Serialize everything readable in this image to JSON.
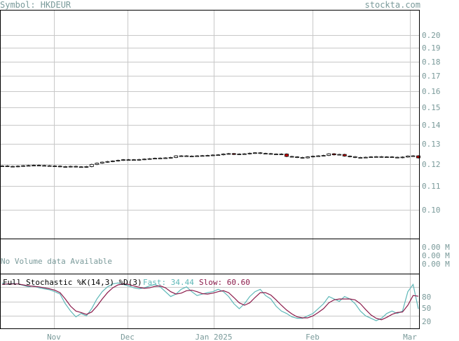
{
  "header": {
    "symbol_text": "Symbol: HKDEUR",
    "site": "stockta.com"
  },
  "volume": {
    "message": "No Volume data Available",
    "tick_labels": [
      "0.00 M",
      "0.00 M",
      "0.00 M"
    ]
  },
  "stochastic": {
    "title": "Full Stochastic %K(14,3) %D(3)",
    "fast_label": "Fast: 34.44",
    "slow_label": "Slow: 60.60",
    "fast_color": "#5fb8b8",
    "slow_color": "#8b1a4a",
    "ticks": [
      "80",
      "50",
      "20"
    ]
  },
  "chart_data": {
    "type": "candlestick",
    "y_ticks": [
      "0.20",
      "0.19",
      "0.18",
      "0.17",
      "0.16",
      "0.15",
      "0.14",
      "0.13",
      "0.12",
      "0.11",
      "0.10"
    ],
    "x_labels": [
      "Nov",
      "Dec",
      "Jan 2025",
      "Feb",
      "Mar"
    ],
    "ylim": [
      0.095,
      0.21
    ],
    "close": [
      0.1192,
      0.119,
      0.1189,
      0.1191,
      0.1193,
      0.1194,
      0.1195,
      0.1194,
      0.1193,
      0.1192,
      0.1191,
      0.1189,
      0.1188,
      0.119,
      0.1188,
      0.1187,
      0.1189,
      0.1199,
      0.1205,
      0.121,
      0.1213,
      0.1216,
      0.1219,
      0.1222,
      0.1222,
      0.1221,
      0.1223,
      0.1225,
      0.1227,
      0.1229,
      0.123,
      0.1231,
      0.1233,
      0.1241,
      0.1241,
      0.124,
      0.124,
      0.1241,
      0.1242,
      0.1243,
      0.1245,
      0.1246,
      0.125,
      0.1252,
      0.1248,
      0.125,
      0.1251,
      0.1254,
      0.1256,
      0.1253,
      0.1252,
      0.125,
      0.1248,
      0.125,
      0.1238,
      0.1236,
      0.1233,
      0.1231,
      0.1236,
      0.1239,
      0.1241,
      0.1243,
      0.1251,
      0.1246,
      0.1248,
      0.124,
      0.1237,
      0.1233,
      0.1233,
      0.1234,
      0.1236,
      0.1237,
      0.1235,
      0.1236,
      0.1234,
      0.1232,
      0.1235,
      0.124,
      0.1241,
      0.1231
    ],
    "stoch_fast": [
      88,
      85,
      87,
      86,
      83,
      80,
      82,
      78,
      76,
      74,
      70,
      65,
      45,
      30,
      18,
      25,
      20,
      35,
      55,
      70,
      80,
      86,
      88,
      85,
      82,
      78,
      76,
      78,
      82,
      85,
      80,
      70,
      60,
      65,
      75,
      80,
      70,
      62,
      65,
      68,
      70,
      75,
      70,
      60,
      45,
      35,
      45,
      60,
      70,
      75,
      62,
      55,
      40,
      30,
      25,
      18,
      15,
      15,
      20,
      25,
      35,
      45,
      60,
      55,
      50,
      60,
      55,
      45,
      30,
      20,
      15,
      10,
      15,
      25,
      30,
      25,
      30,
      70,
      85,
      34.44
    ],
    "stoch_slow": [
      85,
      86,
      86,
      86,
      84,
      82,
      81,
      80,
      78,
      76,
      73,
      68,
      55,
      40,
      30,
      27,
      23,
      28,
      40,
      55,
      68,
      78,
      84,
      86,
      85,
      82,
      79,
      77,
      78,
      81,
      82,
      78,
      70,
      65,
      67,
      72,
      73,
      70,
      66,
      65,
      67,
      70,
      72,
      68,
      58,
      47,
      42,
      47,
      58,
      68,
      68,
      63,
      53,
      42,
      32,
      24,
      18,
      16,
      16,
      20,
      27,
      35,
      47,
      53,
      55,
      55,
      55,
      53,
      45,
      33,
      22,
      15,
      12,
      17,
      23,
      27,
      28,
      42,
      62,
      60.6
    ]
  }
}
